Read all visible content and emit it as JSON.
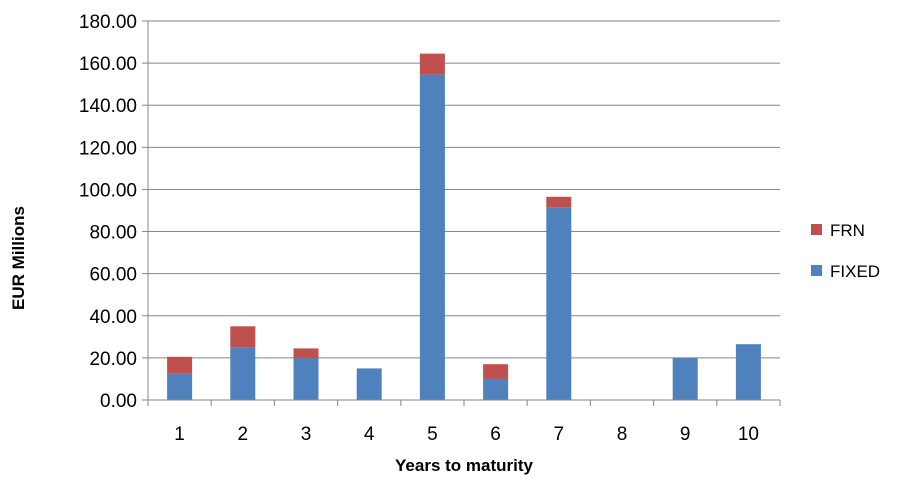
{
  "chart_data": {
    "type": "bar",
    "stacked": true,
    "categories": [
      "1",
      "2",
      "3",
      "4",
      "5",
      "6",
      "7",
      "8",
      "9",
      "10"
    ],
    "series": [
      {
        "name": "FIXED",
        "color": "#4f81bd",
        "values": [
          12.5,
          25.0,
          20.0,
          15.0,
          154.5,
          10.0,
          91.5,
          0,
          20.0,
          26.5
        ]
      },
      {
        "name": "FRN",
        "color": "#c0504d",
        "values": [
          8.0,
          10.0,
          4.5,
          0,
          10.0,
          7.0,
          5.0,
          0,
          0,
          0
        ]
      }
    ],
    "ylabel": "EUR Millions",
    "xlabel": "Years to maturity",
    "ylim": [
      0,
      180
    ],
    "y_ticks": [
      "0.00",
      "20.00",
      "40.00",
      "60.00",
      "80.00",
      "100.00",
      "120.00",
      "140.00",
      "160.00",
      "180.00"
    ],
    "grid": "horizontal",
    "legend": {
      "position": "right",
      "order": [
        "FRN",
        "FIXED"
      ]
    }
  }
}
